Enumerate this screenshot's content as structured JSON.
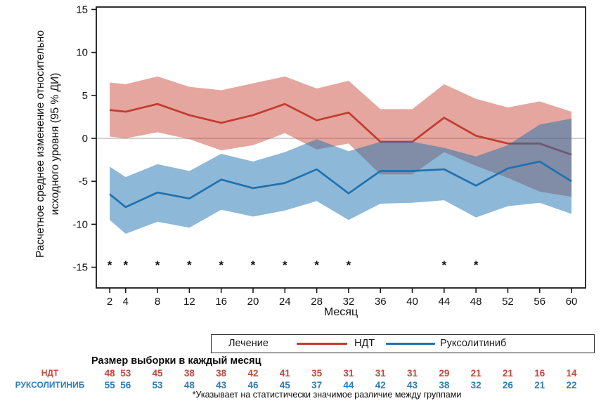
{
  "colors": {
    "ndt_line": "#c23b2e",
    "ndt_band": "rgba(198,58,42,0.45)",
    "rux_line": "#1e72b0",
    "rux_band": "rgba(30,114,176,0.50)",
    "ndt_text": "#c1483a",
    "rux_text": "#2d7cba",
    "zero_line": "#b3b3b3",
    "frame": "#1a1a1a",
    "tick_text": "#111111"
  },
  "axis": {
    "y": {
      "label_line1": "Расчетное среднее изменение относительно",
      "label_line2": "исходного уровня (95 % ДИ)",
      "ticks": [
        15,
        10,
        5,
        0,
        -5,
        -10,
        -15
      ]
    },
    "x": {
      "label": "Месяц",
      "ticks": [
        2,
        4,
        8,
        12,
        16,
        20,
        24,
        28,
        32,
        36,
        40,
        44,
        48,
        52,
        56,
        60
      ]
    }
  },
  "legend": {
    "title": "Лечение",
    "ndt_label": "НДТ",
    "rux_label": "Руксолитиниб"
  },
  "sample_table": {
    "header": "Размер выборки в каждый месяц",
    "rows": [
      {
        "label": "НДТ",
        "values": [
          48,
          53,
          45,
          38,
          38,
          42,
          41,
          35,
          31,
          31,
          31,
          29,
          21,
          21,
          16,
          14
        ]
      },
      {
        "label": "РУКСОЛИТИНИБ",
        "values": [
          55,
          56,
          53,
          48,
          43,
          46,
          45,
          37,
          44,
          42,
          43,
          38,
          32,
          26,
          21,
          22
        ]
      }
    ]
  },
  "footnote": "*Указывает на статистически значимое различие между группами",
  "chart_data": {
    "type": "line",
    "title": "",
    "xlabel": "Месяц",
    "ylabel": "Расчетное среднее изменение относительно исходного уровня (95 % ДИ)",
    "x": [
      2,
      4,
      8,
      12,
      16,
      20,
      24,
      28,
      32,
      36,
      40,
      44,
      48,
      52,
      56,
      60
    ],
    "ylim": [
      -17,
      15.3
    ],
    "grid": false,
    "legend_position": "bottom",
    "series": [
      {
        "name": "НДТ",
        "mean": [
          3.3,
          3.1,
          4.0,
          2.7,
          1.8,
          2.7,
          4.0,
          2.1,
          3.0,
          -0.4,
          -0.4,
          2.4,
          0.3,
          -0.6,
          -0.6,
          -1.9
        ],
        "upper": [
          6.5,
          6.3,
          7.2,
          6.0,
          5.6,
          6.4,
          7.2,
          5.8,
          6.7,
          3.4,
          3.4,
          6.3,
          4.6,
          3.6,
          4.3,
          3.1
        ],
        "lower": [
          0.2,
          0.0,
          0.7,
          -0.1,
          -1.4,
          -0.8,
          0.6,
          -1.3,
          -0.6,
          -4.2,
          -4.2,
          -1.6,
          -3.2,
          -4.6,
          -6.2,
          -6.8
        ]
      },
      {
        "name": "Руксолитиниб",
        "mean": [
          -6.5,
          -8.0,
          -6.3,
          -7.0,
          -4.8,
          -5.8,
          -5.2,
          -3.6,
          -6.4,
          -3.8,
          -3.8,
          -3.6,
          -5.5,
          -3.5,
          -2.7,
          -5.0
        ],
        "upper": [
          -3.3,
          -4.5,
          -3.0,
          -3.8,
          -1.8,
          -2.7,
          -1.6,
          -0.1,
          -1.5,
          -0.4,
          -0.4,
          -1.1,
          -2.1,
          -0.8,
          1.6,
          2.3
        ],
        "lower": [
          -9.5,
          -11.1,
          -9.7,
          -10.4,
          -8.3,
          -9.1,
          -8.4,
          -7.3,
          -9.5,
          -7.6,
          -7.5,
          -7.2,
          -9.2,
          -7.9,
          -7.5,
          -8.8
        ]
      }
    ],
    "significance_marker": "*",
    "significance_months": [
      2,
      4,
      8,
      12,
      16,
      20,
      24,
      28,
      32,
      44,
      48
    ],
    "significance_y": -14.7
  }
}
